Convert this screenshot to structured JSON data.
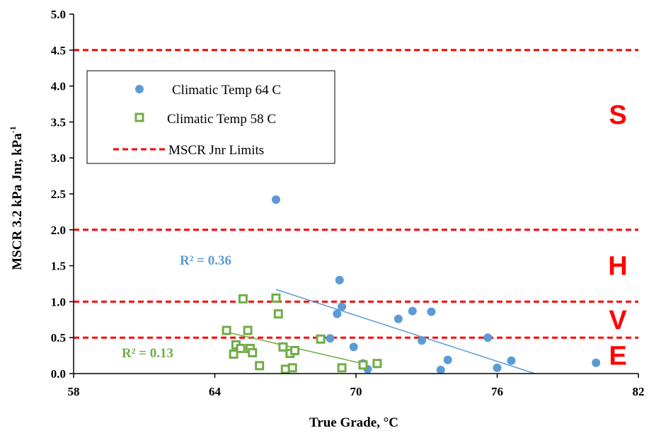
{
  "chart_data": {
    "type": "scatter",
    "title": "",
    "xlabel": "True Grade, °C",
    "ylabel": "MSCR 3.2 kPa Jnr, kPa",
    "ylabel_sup": "-1",
    "xlim": [
      58,
      82
    ],
    "ylim": [
      0,
      5
    ],
    "x_ticks": [
      58,
      64,
      70,
      76,
      82
    ],
    "y_ticks": [
      "0.0",
      "0.5",
      "1.0",
      "1.5",
      "2.0",
      "2.5",
      "3.0",
      "3.5",
      "4.0",
      "4.5",
      "5.0"
    ],
    "grid": false,
    "legend_position": "top-left",
    "series": [
      {
        "name": "Climatic Temp 64 C",
        "marker": "filled-circle",
        "color": "#5b9bd5",
        "points": [
          [
            66.6,
            2.42
          ],
          [
            69.3,
            1.3
          ],
          [
            69.2,
            0.83
          ],
          [
            69.4,
            0.93
          ],
          [
            68.9,
            0.49
          ],
          [
            69.9,
            0.37
          ],
          [
            70.3,
            0.14
          ],
          [
            70.5,
            0.06
          ],
          [
            71.8,
            0.76
          ],
          [
            72.4,
            0.87
          ],
          [
            72.8,
            0.46
          ],
          [
            73.2,
            0.86
          ],
          [
            73.6,
            0.05
          ],
          [
            73.9,
            0.19
          ],
          [
            75.6,
            0.5
          ],
          [
            76.0,
            0.08
          ],
          [
            76.6,
            0.18
          ],
          [
            80.2,
            0.15
          ]
        ],
        "trendline": {
          "x": [
            66.6,
            77.6
          ],
          "y": [
            1.17,
            0.0
          ],
          "label": "R² = 0.36"
        }
      },
      {
        "name": "Climatic Temp 58 C",
        "marker": "hollow-square",
        "color": "#70ad47",
        "points": [
          [
            64.5,
            0.6
          ],
          [
            64.8,
            0.27
          ],
          [
            64.9,
            0.4
          ],
          [
            65.1,
            0.35
          ],
          [
            65.2,
            1.04
          ],
          [
            65.4,
            0.6
          ],
          [
            65.5,
            0.35
          ],
          [
            65.6,
            0.29
          ],
          [
            65.9,
            0.11
          ],
          [
            66.6,
            1.05
          ],
          [
            66.7,
            0.83
          ],
          [
            66.9,
            0.37
          ],
          [
            67.0,
            0.06
          ],
          [
            67.2,
            0.28
          ],
          [
            67.3,
            0.08
          ],
          [
            67.4,
            0.32
          ],
          [
            68.5,
            0.48
          ],
          [
            69.4,
            0.08
          ],
          [
            70.3,
            0.12
          ],
          [
            70.9,
            0.14
          ]
        ],
        "trendline": {
          "x": [
            64.6,
            70.4
          ],
          "y": [
            0.57,
            0.13
          ],
          "label": "R² = 0.13"
        }
      }
    ],
    "reference_lines": {
      "name": "MSCR Jnr Limits",
      "color": "#ff0000",
      "style": "dashed",
      "y_values": [
        0.5,
        1.0,
        2.0,
        4.5
      ]
    },
    "zone_labels": [
      {
        "text": "S",
        "y": 3.6
      },
      {
        "text": "H",
        "y": 1.5
      },
      {
        "text": "V",
        "y": 0.75
      },
      {
        "text": "E",
        "y": 0.25
      }
    ]
  }
}
